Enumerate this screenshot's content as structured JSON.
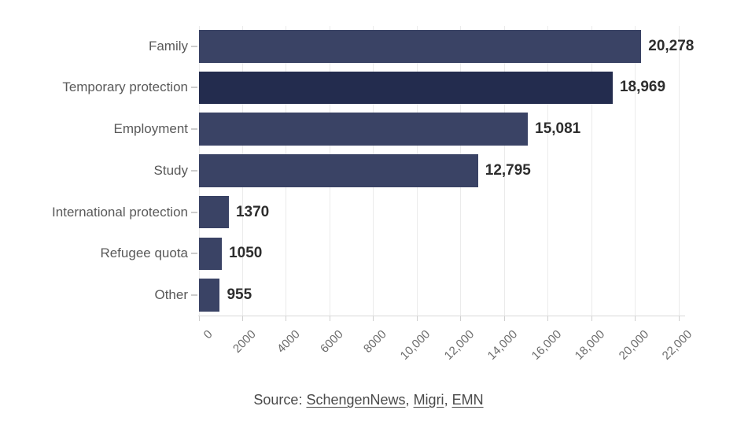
{
  "chart_data": {
    "type": "bar",
    "orientation": "horizontal",
    "title": "",
    "xlabel": "",
    "ylabel": "",
    "categories": [
      "Family",
      "Temporary protection",
      "Employment",
      "Study",
      "International protection",
      "Refugee quota",
      "Other"
    ],
    "values": [
      20278,
      18969,
      15081,
      12795,
      1370,
      1050,
      955
    ],
    "value_labels": [
      "20,278",
      "18,969",
      "15,081",
      "12,795",
      "1370",
      "1050",
      "955"
    ],
    "xlim": [
      0,
      22000
    ],
    "x_ticks": [
      0,
      2000,
      4000,
      6000,
      8000,
      10000,
      12000,
      14000,
      16000,
      18000,
      20000,
      22000
    ],
    "x_tick_labels": [
      "0",
      "2000",
      "4000",
      "6000",
      "8000",
      "10,000",
      "12,000",
      "14,000",
      "16,000",
      "18,000",
      "20,000",
      "22,000"
    ],
    "grid": "vertical-only",
    "legend": "none",
    "bar_color": "#3a4365",
    "highlight_color": "#232c4e",
    "highlighted_category": "Temporary protection"
  },
  "source": {
    "prefix": "Source: ",
    "separator": ", ",
    "links": [
      "SchengenNews",
      "Migri",
      "EMN"
    ]
  }
}
